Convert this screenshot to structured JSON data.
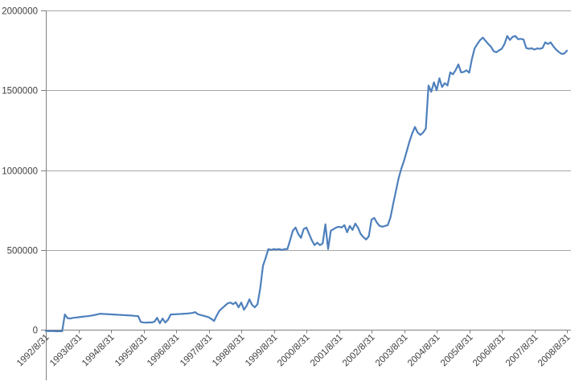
{
  "chart_data": {
    "type": "line",
    "title": "",
    "xlabel": "",
    "ylabel": "",
    "legend": "none",
    "grid": "horizontal",
    "ylim": [
      0,
      2000000
    ],
    "y_ticks": [
      0,
      500000,
      1000000,
      1500000,
      2000000
    ],
    "y_tick_labels": [
      "0",
      "500000",
      "1000000",
      "1500000",
      "2000000"
    ],
    "x_tick_labels": [
      "1992/8/31",
      "1993/8/31",
      "1994/8/31",
      "1995/8/31",
      "1996/8/31",
      "1997/8/31",
      "1998/8/31",
      "1999/8/31",
      "2000/8/31",
      "2001/8/31",
      "2002/8/31",
      "2003/8/31",
      "2004/8/31",
      "2005/8/31",
      "2006/8/31",
      "2007/8/31",
      "2008/8/31"
    ],
    "x_range": [
      "1992/8/31",
      "2008/8/31"
    ],
    "sampling": "monthly",
    "series": [
      {
        "name": "",
        "values": [
          -8000,
          -9000,
          -8000,
          -9000,
          -10000,
          -9000,
          -10000,
          95000,
          72000,
          70000,
          74000,
          76000,
          78000,
          80000,
          82000,
          84000,
          86000,
          89000,
          92000,
          96000,
          100000,
          99000,
          98000,
          97000,
          96000,
          95000,
          94000,
          93000,
          92000,
          91000,
          90000,
          89000,
          88000,
          86000,
          85000,
          48000,
          45000,
          44000,
          46000,
          45000,
          50000,
          75000,
          40000,
          70000,
          45000,
          62000,
          95000,
          96000,
          97000,
          98000,
          99000,
          100000,
          101000,
          103000,
          105000,
          110000,
          97000,
          92000,
          88000,
          83000,
          78000,
          67000,
          55000,
          90000,
          120000,
          135000,
          150000,
          165000,
          170000,
          160000,
          172000,
          140000,
          170000,
          125000,
          150000,
          190000,
          155000,
          140000,
          160000,
          260000,
          400000,
          450000,
          505000,
          500000,
          505000,
          502000,
          505000,
          500000,
          505000,
          505000,
          560000,
          620000,
          640000,
          600000,
          575000,
          630000,
          640000,
          600000,
          560000,
          530000,
          545000,
          530000,
          540000,
          660000,
          505000,
          620000,
          630000,
          640000,
          645000,
          640000,
          655000,
          610000,
          650000,
          625000,
          665000,
          640000,
          600000,
          580000,
          565000,
          585000,
          690000,
          700000,
          670000,
          650000,
          645000,
          650000,
          655000,
          705000,
          790000,
          870000,
          950000,
          1010000,
          1060000,
          1120000,
          1180000,
          1230000,
          1270000,
          1235000,
          1220000,
          1235000,
          1260000,
          1530000,
          1490000,
          1550000,
          1500000,
          1575000,
          1520000,
          1545000,
          1530000,
          1612000,
          1600000,
          1627000,
          1662000,
          1612000,
          1615000,
          1625000,
          1610000,
          1697000,
          1763000,
          1790000,
          1814000,
          1830000,
          1810000,
          1790000,
          1773000,
          1745000,
          1738000,
          1750000,
          1760000,
          1790000,
          1840000,
          1815000,
          1835000,
          1840000,
          1820000,
          1822000,
          1818000,
          1765000,
          1760000,
          1763000,
          1755000,
          1762000,
          1760000,
          1765000,
          1800000,
          1790000,
          1800000,
          1775000,
          1755000,
          1740000,
          1728000,
          1730000,
          1748000
        ]
      }
    ],
    "colors": {
      "line": "#4E80BC",
      "gridline": "#A6A6A6",
      "axis": "#808080",
      "tick_label": "#3F3F3F",
      "background": "#FFFFFF"
    }
  }
}
